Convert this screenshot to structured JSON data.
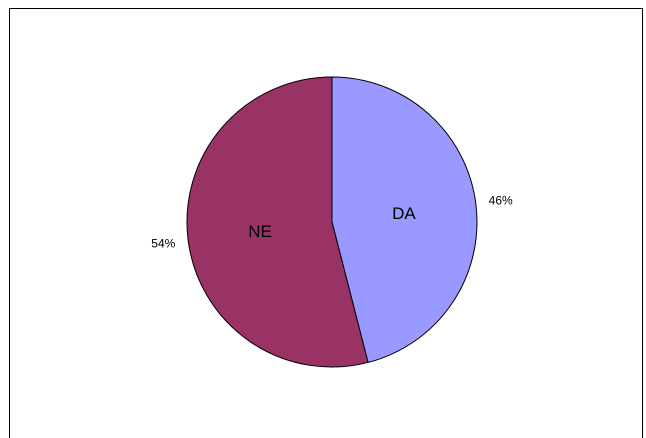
{
  "chart_data": {
    "type": "pie",
    "title": "",
    "slices": [
      {
        "label": "DA",
        "value": 46,
        "value_label": "46%",
        "color": "#9999ff"
      },
      {
        "label": "NE",
        "value": 54,
        "value_label": "54%",
        "color": "#993366"
      }
    ],
    "start_angle_deg": 0,
    "direction": "clockwise",
    "slice_label_position": "inside",
    "value_label_position": "outside",
    "legend": "none",
    "outline_color": "#000000"
  }
}
